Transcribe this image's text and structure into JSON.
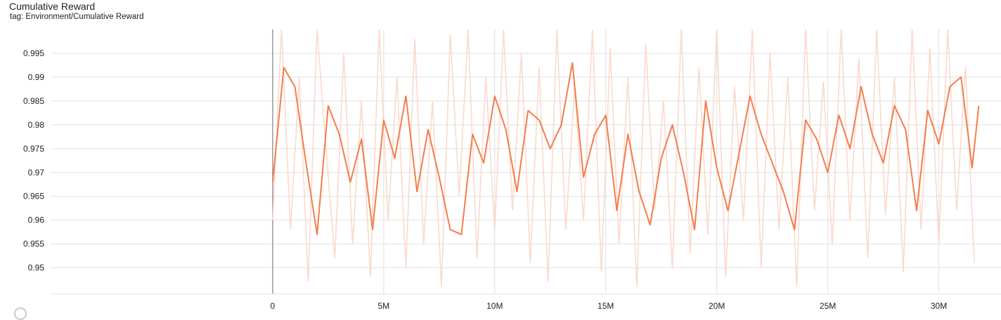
{
  "card": {
    "title": "Cumulative Reward",
    "tag": "tag: Environment/Cumulative Reward"
  },
  "colors": {
    "smoothed_line": "#f57c4c",
    "raw_line": "#fbd9cc",
    "grid": "#e0e0e0",
    "zero_axis": "#8a8a8a"
  },
  "chart_data": {
    "type": "line",
    "title": "Cumulative Reward",
    "xlabel": "",
    "ylabel": "",
    "xlim": [
      -10000000,
      32800000
    ],
    "ylim": [
      0.9445,
      1.0
    ],
    "grid": true,
    "legend": "none",
    "x_ticks": [
      {
        "value": 0,
        "label": "0"
      },
      {
        "value": 5000000,
        "label": "5M"
      },
      {
        "value": 10000000,
        "label": "10M"
      },
      {
        "value": 15000000,
        "label": "15M"
      },
      {
        "value": 20000000,
        "label": "20M"
      },
      {
        "value": 25000000,
        "label": "25M"
      },
      {
        "value": 30000000,
        "label": "30M"
      }
    ],
    "y_ticks": [
      {
        "value": 0.95,
        "label": "0.95"
      },
      {
        "value": 0.955,
        "label": "0.955"
      },
      {
        "value": 0.96,
        "label": "0.96"
      },
      {
        "value": 0.965,
        "label": "0.965"
      },
      {
        "value": 0.97,
        "label": "0.97"
      },
      {
        "value": 0.975,
        "label": "0.975"
      },
      {
        "value": 0.98,
        "label": "0.98"
      },
      {
        "value": 0.985,
        "label": "0.985"
      },
      {
        "value": 0.99,
        "label": "0.99"
      },
      {
        "value": 0.995,
        "label": "0.995"
      }
    ],
    "series": [
      {
        "role": "smoothed",
        "x": [
          0,
          500000,
          1000000,
          1500000,
          2000000,
          2500000,
          3000000,
          3500000,
          4000000,
          4500000,
          5000000,
          5500000,
          6000000,
          6500000,
          7000000,
          7500000,
          8000000,
          8500000,
          9000000,
          9500000,
          10000000,
          10500000,
          11000000,
          11500000,
          12000000,
          12500000,
          13000000,
          13500000,
          14000000,
          14500000,
          15000000,
          15500000,
          16000000,
          16500000,
          17000000,
          17500000,
          18000000,
          18500000,
          19000000,
          19500000,
          20000000,
          20500000,
          21000000,
          21500000,
          22000000,
          22500000,
          23000000,
          23500000,
          24000000,
          24500000,
          25000000,
          25500000,
          26000000,
          26500000,
          27000000,
          27500000,
          28000000,
          28500000,
          29000000,
          29500000,
          30000000,
          30500000,
          31000000,
          31500000,
          31800000
        ],
        "y": [
          0.968,
          0.992,
          0.988,
          0.972,
          0.957,
          0.984,
          0.978,
          0.968,
          0.977,
          0.958,
          0.981,
          0.973,
          0.986,
          0.966,
          0.979,
          0.969,
          0.958,
          0.957,
          0.978,
          0.972,
          0.986,
          0.979,
          0.966,
          0.983,
          0.981,
          0.975,
          0.98,
          0.993,
          0.969,
          0.978,
          0.982,
          0.962,
          0.978,
          0.966,
          0.959,
          0.973,
          0.98,
          0.97,
          0.958,
          0.985,
          0.971,
          0.962,
          0.974,
          0.986,
          0.978,
          0.972,
          0.966,
          0.958,
          0.981,
          0.977,
          0.97,
          0.982,
          0.975,
          0.988,
          0.978,
          0.972,
          0.984,
          0.979,
          0.962,
          0.983,
          0.976,
          0.988,
          0.99,
          0.971,
          0.984
        ]
      },
      {
        "role": "raw",
        "x": [
          0,
          400000,
          800000,
          1200000,
          1600000,
          2000000,
          2400000,
          2800000,
          3200000,
          3600000,
          4000000,
          4400000,
          4800000,
          5200000,
          5600000,
          6000000,
          6400000,
          6800000,
          7200000,
          7600000,
          8000000,
          8400000,
          8800000,
          9200000,
          9600000,
          10000000,
          10400000,
          10800000,
          11200000,
          11600000,
          12000000,
          12400000,
          12800000,
          13200000,
          13600000,
          14000000,
          14400000,
          14800000,
          15200000,
          15600000,
          16000000,
          16400000,
          16800000,
          17200000,
          17600000,
          18000000,
          18400000,
          18800000,
          19200000,
          19600000,
          20000000,
          20400000,
          20800000,
          21200000,
          21600000,
          22000000,
          22400000,
          22800000,
          23200000,
          23600000,
          24000000,
          24400000,
          24800000,
          25200000,
          25600000,
          26000000,
          26400000,
          26800000,
          27200000,
          27600000,
          28000000,
          28400000,
          28800000,
          29200000,
          29600000,
          30000000,
          30400000,
          30800000,
          31200000,
          31600000
        ],
        "y": [
          0.96,
          1.0,
          0.958,
          0.99,
          0.947,
          1.0,
          0.975,
          0.952,
          0.995,
          0.955,
          0.985,
          0.948,
          1.0,
          0.96,
          0.99,
          0.95,
          0.998,
          0.955,
          0.985,
          0.946,
          0.999,
          0.965,
          1.0,
          0.952,
          0.99,
          0.958,
          1.0,
          0.962,
          0.995,
          0.951,
          0.992,
          0.947,
          1.0,
          0.958,
          0.988,
          0.96,
          1.0,
          0.949,
          0.996,
          0.955,
          0.99,
          0.946,
          0.997,
          0.962,
          0.985,
          0.95,
          1.0,
          0.953,
          0.992,
          0.957,
          1.0,
          0.948,
          0.988,
          0.96,
          1.0,
          0.95,
          0.995,
          0.958,
          0.99,
          0.946,
          1.0,
          0.962,
          0.989,
          0.955,
          1.0,
          0.96,
          0.994,
          0.952,
          1.0,
          0.961,
          0.99,
          0.949,
          1.0,
          0.958,
          0.996,
          0.955,
          1.0,
          0.962,
          0.992,
          0.951
        ]
      }
    ]
  }
}
